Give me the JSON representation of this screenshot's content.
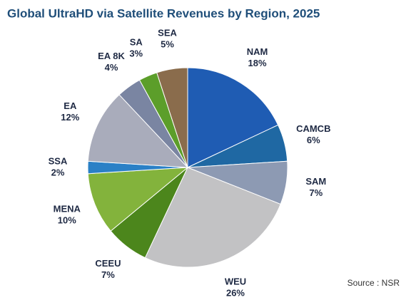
{
  "chart_data": {
    "type": "pie",
    "title": "Global UltraHD via Satellite Revenues by Region, 2025",
    "categories": [
      "NAM",
      "CAMCB",
      "SAM",
      "WEU",
      "CEEU",
      "MENA",
      "SSA",
      "EA",
      "EA 8K",
      "SA",
      "SEA"
    ],
    "values": [
      18,
      6,
      7,
      26,
      7,
      10,
      2,
      12,
      4,
      3,
      5
    ],
    "value_labels": [
      "18%",
      "6%",
      "7%",
      "26%",
      "7%",
      "10%",
      "2%",
      "12%",
      "4%",
      "3%",
      "5%"
    ],
    "colors": [
      "#1f5cb3",
      "#1f68a3",
      "#8d9ab3",
      "#c2c2c4",
      "#4c861c",
      "#83b33c",
      "#2a80c6",
      "#a9acbb",
      "#7a85a2",
      "#5c9e2a",
      "#8a6c4c"
    ],
    "source": "Source : NSR"
  }
}
